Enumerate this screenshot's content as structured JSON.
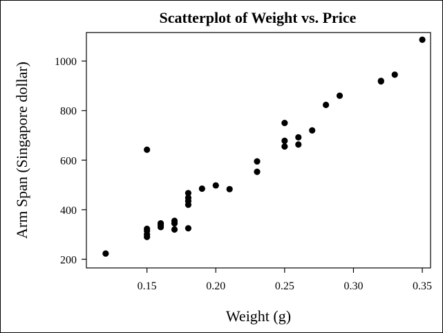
{
  "chart_data": {
    "type": "scatter",
    "title": "Scatterplot of Weight vs. Price",
    "xlabel": "Weight (g)",
    "ylabel": "Arm Span (Singapore dollar)",
    "xlim": [
      0.106,
      0.356
    ],
    "ylim": [
      165,
      1115
    ],
    "xticks": [
      0.15,
      0.2,
      0.25,
      0.3,
      0.35
    ],
    "xtick_labels": [
      "0.15",
      "0.20",
      "0.25",
      "0.30",
      "0.35"
    ],
    "yticks": [
      200,
      400,
      600,
      800,
      1000
    ],
    "ytick_labels": [
      "200",
      "400",
      "600",
      "800",
      "1000"
    ],
    "grid": false,
    "legend": "none",
    "marker_color": "#000000",
    "points": [
      {
        "x": 0.12,
        "y": 223
      },
      {
        "x": 0.15,
        "y": 290
      },
      {
        "x": 0.15,
        "y": 300
      },
      {
        "x": 0.15,
        "y": 315
      },
      {
        "x": 0.15,
        "y": 323
      },
      {
        "x": 0.15,
        "y": 642
      },
      {
        "x": 0.16,
        "y": 330
      },
      {
        "x": 0.16,
        "y": 338
      },
      {
        "x": 0.16,
        "y": 345
      },
      {
        "x": 0.17,
        "y": 320
      },
      {
        "x": 0.17,
        "y": 345
      },
      {
        "x": 0.17,
        "y": 355
      },
      {
        "x": 0.18,
        "y": 325
      },
      {
        "x": 0.18,
        "y": 420
      },
      {
        "x": 0.18,
        "y": 435
      },
      {
        "x": 0.18,
        "y": 448
      },
      {
        "x": 0.18,
        "y": 467
      },
      {
        "x": 0.19,
        "y": 485
      },
      {
        "x": 0.2,
        "y": 498
      },
      {
        "x": 0.21,
        "y": 483
      },
      {
        "x": 0.23,
        "y": 553
      },
      {
        "x": 0.23,
        "y": 595
      },
      {
        "x": 0.25,
        "y": 655
      },
      {
        "x": 0.25,
        "y": 678
      },
      {
        "x": 0.25,
        "y": 750
      },
      {
        "x": 0.26,
        "y": 663
      },
      {
        "x": 0.26,
        "y": 692
      },
      {
        "x": 0.27,
        "y": 720
      },
      {
        "x": 0.28,
        "y": 823
      },
      {
        "x": 0.29,
        "y": 860
      },
      {
        "x": 0.32,
        "y": 918
      },
      {
        "x": 0.32,
        "y": 920
      },
      {
        "x": 0.33,
        "y": 945
      },
      {
        "x": 0.35,
        "y": 1086
      }
    ]
  }
}
